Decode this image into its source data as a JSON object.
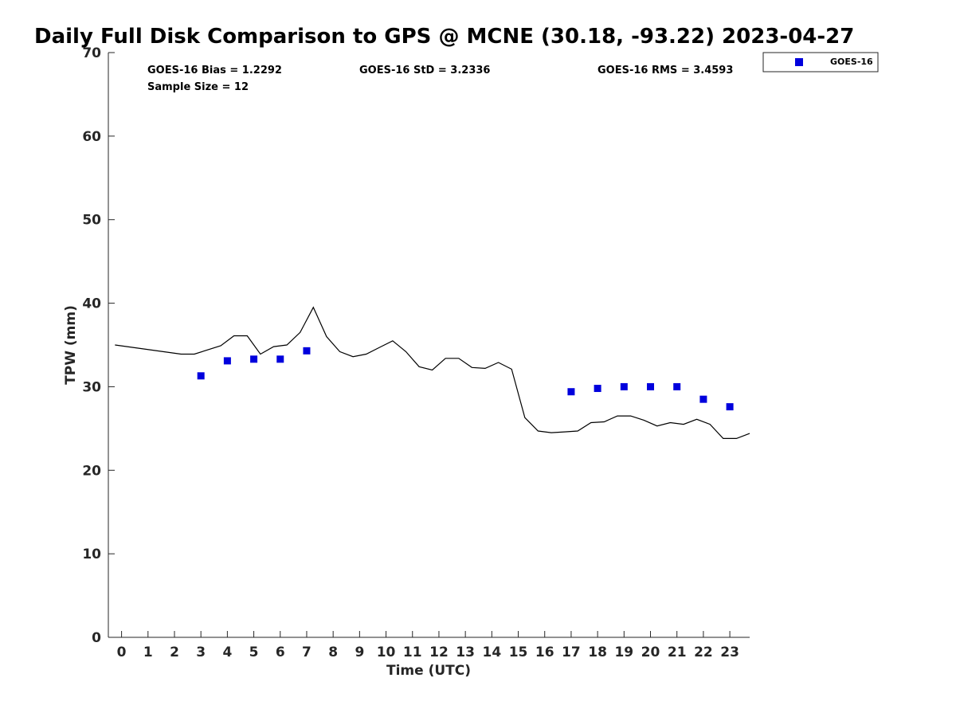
{
  "chart_data": {
    "type": "line",
    "title": "Daily Full Disk Comparison to GPS @ MCNE (30.18, -93.22) 2023-04-27",
    "xlabel": "Time (UTC)",
    "ylabel": "TPW (mm)",
    "xlim": [
      -0.5,
      23.75
    ],
    "ylim": [
      0,
      70
    ],
    "x_ticks": [
      0,
      1,
      2,
      3,
      4,
      5,
      6,
      7,
      8,
      9,
      10,
      11,
      12,
      13,
      14,
      15,
      16,
      17,
      18,
      19,
      20,
      21,
      22,
      23
    ],
    "y_ticks": [
      0,
      10,
      20,
      30,
      40,
      50,
      60,
      70
    ],
    "grid": false,
    "legend_placement": "top-right-outside",
    "colors": {
      "gps_line": "#000000",
      "goes16": "#0000dd"
    },
    "stats": {
      "bias": "GOES-16 Bias = 1.2292",
      "std": "GOES-16 StD = 3.2336",
      "rms": "GOES-16 RMS = 3.4593",
      "sample": "Sample Size = 12"
    },
    "series": [
      {
        "style": "line",
        "x": [
          -0.25,
          2.25,
          2.75,
          3.75,
          4.25,
          4.75,
          5.25,
          5.75,
          6.25,
          6.75,
          7.25,
          7.75,
          8.25,
          8.75,
          9.25,
          9.75,
          10.25,
          10.75,
          11.25,
          11.75,
          12.25,
          12.75,
          13.25,
          13.75,
          14.25,
          14.75,
          15.25,
          15.75,
          16.25,
          16.75,
          17.25,
          17.75,
          18.25,
          18.75,
          19.25,
          19.75,
          20.25,
          20.75,
          21.25,
          21.75,
          22.25,
          22.75,
          23.25,
          23.75
        ],
        "y": [
          35.0,
          33.9,
          33.9,
          34.9,
          36.1,
          36.1,
          33.9,
          34.8,
          35.0,
          36.5,
          39.5,
          36.0,
          34.2,
          33.6,
          33.9,
          34.7,
          35.5,
          34.2,
          32.4,
          32.0,
          33.4,
          33.4,
          32.3,
          32.2,
          32.9,
          32.1,
          26.3,
          24.7,
          24.5,
          24.6,
          24.7,
          25.7,
          25.8,
          26.5,
          26.5,
          26.0,
          25.3,
          25.7,
          25.5,
          26.1,
          25.5,
          23.8,
          23.8,
          24.4
        ]
      },
      {
        "name": "GOES-16",
        "style": "scatter",
        "marker": "square",
        "x": [
          3,
          4,
          5,
          6,
          7,
          17,
          18,
          19,
          20,
          21,
          22,
          23
        ],
        "y": [
          31.3,
          33.1,
          33.3,
          33.3,
          34.3,
          29.4,
          29.8,
          30.0,
          30.0,
          30.0,
          28.5,
          27.6
        ]
      }
    ]
  }
}
